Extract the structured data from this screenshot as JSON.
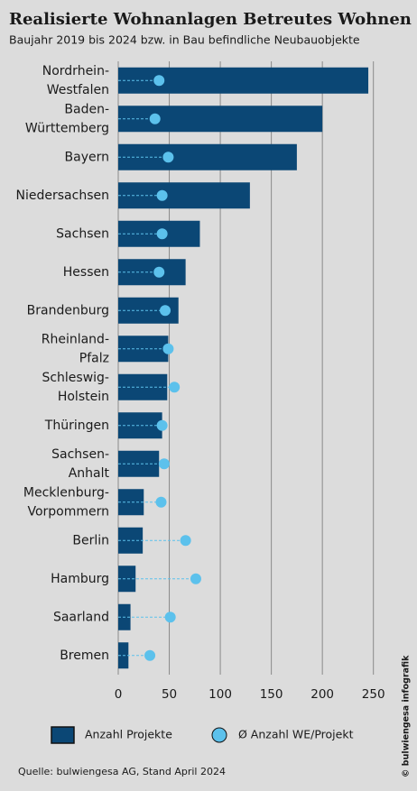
{
  "chart_data": {
    "type": "bar",
    "orientation": "horizontal",
    "title": "Realisierte Wohnanlagen Betreutes Wohnen",
    "subtitle": "Baujahr 2019 bis 2024 bzw. in Bau befindliche Neubauobjekte",
    "source": "Quelle: bulwiengesa AG, Stand April 2024",
    "credit": "© bulwiengesa infografik",
    "categories": [
      "Nordrhein-Westfalen",
      "Baden-Württemberg",
      "Bayern",
      "Niedersachsen",
      "Sachsen",
      "Hessen",
      "Brandenburg",
      "Rheinland-Pfalz",
      "Schleswig-Holstein",
      "Thüringen",
      "Sachsen-Anhalt",
      "Mecklenburg-Vorpommern",
      "Berlin",
      "Hamburg",
      "Saarland",
      "Bremen"
    ],
    "series": [
      {
        "name": "Anzahl Projekte",
        "color": "#0b4775",
        "marker": "bar",
        "values": [
          245,
          200,
          175,
          129,
          80,
          66,
          59,
          49,
          48,
          43,
          40,
          25,
          24,
          17,
          12,
          10
        ]
      },
      {
        "name": "Ø Anzahl WE/Projekt",
        "color": "#5cc1ec",
        "marker": "dot",
        "values": [
          40,
          36,
          49,
          43,
          43,
          40,
          46,
          49,
          55,
          43,
          45,
          42,
          66,
          76,
          51,
          31
        ]
      }
    ],
    "xlim": [
      0,
      260
    ],
    "xticks": [
      0,
      50,
      100,
      150,
      200,
      250
    ],
    "grid": true
  }
}
